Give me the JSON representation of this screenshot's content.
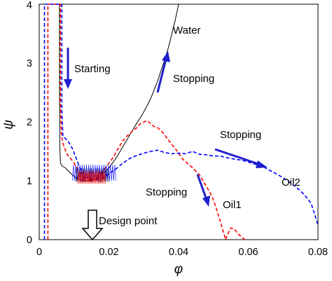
{
  "chart_data": {
    "type": "line",
    "xlabel": "φ",
    "ylabel": "ψ",
    "xlim": [
      0,
      0.08
    ],
    "ylim": [
      0,
      4
    ],
    "x_ticks": [
      "0",
      "0.02",
      "0.04",
      "0.06",
      "0.08"
    ],
    "y_ticks": [
      "0",
      "1",
      "2",
      "3",
      "4"
    ],
    "grid": false,
    "series": [
      {
        "name": "Water",
        "color": "#000000",
        "dash": "solid",
        "points": [
          [
            0.0058,
            4.0
          ],
          [
            0.0058,
            3.0
          ],
          [
            0.0059,
            1.6
          ],
          [
            0.0061,
            1.3
          ],
          [
            0.0066,
            1.25
          ],
          [
            0.0075,
            1.22
          ],
          [
            0.0085,
            1.16
          ],
          [
            0.0095,
            1.1
          ],
          [
            0.0105,
            1.05
          ],
          [
            0.0115,
            1.02
          ],
          [
            0.0125,
            1.0
          ],
          [
            0.014,
            1.0
          ],
          [
            0.0155,
            1.01
          ],
          [
            0.017,
            1.05
          ],
          [
            0.018,
            1.1
          ],
          [
            0.019,
            1.16
          ],
          [
            0.02,
            1.22
          ],
          [
            0.021,
            1.3
          ],
          [
            0.022,
            1.38
          ],
          [
            0.023,
            1.48
          ],
          [
            0.024,
            1.58
          ],
          [
            0.025,
            1.68
          ],
          [
            0.026,
            1.78
          ],
          [
            0.027,
            1.88
          ],
          [
            0.028,
            1.98
          ],
          [
            0.029,
            2.07
          ],
          [
            0.03,
            2.17
          ],
          [
            0.031,
            2.28
          ],
          [
            0.032,
            2.4
          ],
          [
            0.033,
            2.55
          ],
          [
            0.034,
            2.7
          ],
          [
            0.035,
            2.88
          ],
          [
            0.036,
            3.05
          ],
          [
            0.037,
            3.25
          ],
          [
            0.038,
            3.48
          ],
          [
            0.039,
            3.72
          ],
          [
            0.04,
            4.0
          ]
        ]
      },
      {
        "name": "Oil1",
        "color": "#ff0000",
        "dash": "dashed",
        "points": [
          [
            0.0025,
            0.0
          ],
          [
            0.0025,
            4.0
          ],
          [
            0.0061,
            4.0
          ],
          [
            0.0061,
            2.3
          ],
          [
            0.0064,
            1.75
          ],
          [
            0.007,
            1.6
          ],
          [
            0.008,
            1.45
          ],
          [
            0.009,
            1.38
          ],
          [
            0.01,
            1.3
          ],
          [
            0.011,
            1.2
          ],
          [
            0.012,
            1.1
          ],
          [
            0.013,
            1.05
          ],
          [
            0.014,
            1.0
          ],
          [
            0.015,
            1.0
          ],
          [
            0.016,
            1.02
          ],
          [
            0.017,
            1.08
          ],
          [
            0.018,
            1.15
          ],
          [
            0.019,
            1.22
          ],
          [
            0.02,
            1.3
          ],
          [
            0.021,
            1.38
          ],
          [
            0.022,
            1.48
          ],
          [
            0.023,
            1.58
          ],
          [
            0.024,
            1.68
          ],
          [
            0.025,
            1.75
          ],
          [
            0.026,
            1.8
          ],
          [
            0.027,
            1.86
          ],
          [
            0.028,
            1.9
          ],
          [
            0.029,
            1.97
          ],
          [
            0.03,
            2.0
          ],
          [
            0.031,
            2.02
          ],
          [
            0.032,
            1.97
          ],
          [
            0.033,
            1.92
          ],
          [
            0.034,
            1.9
          ],
          [
            0.035,
            1.85
          ],
          [
            0.036,
            1.78
          ],
          [
            0.037,
            1.7
          ],
          [
            0.038,
            1.62
          ],
          [
            0.039,
            1.55
          ],
          [
            0.04,
            1.47
          ],
          [
            0.041,
            1.38
          ],
          [
            0.042,
            1.32
          ],
          [
            0.043,
            1.28
          ],
          [
            0.044,
            1.22
          ],
          [
            0.045,
            1.16
          ],
          [
            0.046,
            1.1
          ],
          [
            0.047,
            1.0
          ],
          [
            0.048,
            0.9
          ],
          [
            0.049,
            0.8
          ],
          [
            0.05,
            0.67
          ],
          [
            0.051,
            0.5
          ],
          [
            0.052,
            0.3
          ],
          [
            0.053,
            0.1
          ],
          [
            0.0535,
            0.0
          ],
          [
            0.054,
            0.08
          ],
          [
            0.055,
            0.2
          ],
          [
            0.056,
            0.18
          ],
          [
            0.057,
            0.1
          ],
          [
            0.058,
            0.05
          ],
          [
            0.059,
            0.0
          ]
        ]
      },
      {
        "name": "Oil2",
        "color": "#0000ff",
        "dash": "dashed",
        "points": [
          [
            0.0015,
            0.0
          ],
          [
            0.0015,
            4.0
          ],
          [
            0.0065,
            4.0
          ],
          [
            0.0065,
            2.2
          ],
          [
            0.0068,
            1.75
          ],
          [
            0.0075,
            1.72
          ],
          [
            0.0085,
            1.65
          ],
          [
            0.0095,
            1.55
          ],
          [
            0.0105,
            1.4
          ],
          [
            0.0115,
            1.25
          ],
          [
            0.0125,
            1.12
          ],
          [
            0.0135,
            1.05
          ],
          [
            0.015,
            1.02
          ],
          [
            0.0165,
            1.02
          ],
          [
            0.018,
            1.05
          ],
          [
            0.02,
            1.12
          ],
          [
            0.022,
            1.2
          ],
          [
            0.024,
            1.3
          ],
          [
            0.026,
            1.38
          ],
          [
            0.028,
            1.43
          ],
          [
            0.03,
            1.47
          ],
          [
            0.032,
            1.5
          ],
          [
            0.034,
            1.52
          ],
          [
            0.036,
            1.48
          ],
          [
            0.038,
            1.46
          ],
          [
            0.04,
            1.47
          ],
          [
            0.042,
            1.46
          ],
          [
            0.044,
            1.5
          ],
          [
            0.046,
            1.45
          ],
          [
            0.048,
            1.44
          ],
          [
            0.05,
            1.42
          ],
          [
            0.052,
            1.42
          ],
          [
            0.054,
            1.39
          ],
          [
            0.056,
            1.37
          ],
          [
            0.058,
            1.35
          ],
          [
            0.06,
            1.32
          ],
          [
            0.062,
            1.28
          ],
          [
            0.064,
            1.25
          ],
          [
            0.066,
            1.18
          ],
          [
            0.068,
            1.12
          ],
          [
            0.07,
            1.05
          ],
          [
            0.072,
            0.97
          ],
          [
            0.074,
            0.88
          ],
          [
            0.076,
            0.77
          ],
          [
            0.078,
            0.62
          ],
          [
            0.08,
            0.25
          ]
        ]
      }
    ],
    "annotations": [
      "Starting",
      "Stopping",
      "Stopping",
      "Stopping",
      "Design point"
    ],
    "series_labels": [
      "Water",
      "Oil1",
      "Oil2"
    ]
  },
  "colors": {
    "arrow": "#1f1fcf",
    "axis": "#000000"
  }
}
